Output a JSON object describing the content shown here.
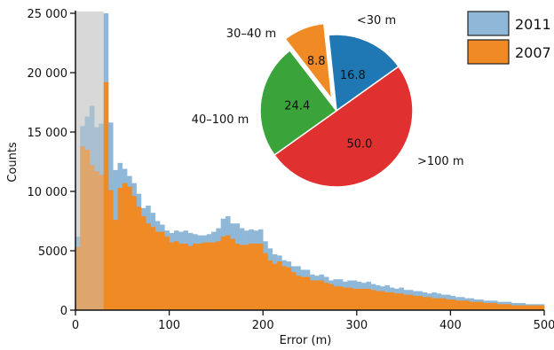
{
  "chart_data": [
    {
      "type": "bar",
      "subtype": "histogram",
      "xlabel": "Error (m)",
      "ylabel": "Counts",
      "xlim": [
        0,
        500
      ],
      "ylim": [
        0,
        25000
      ],
      "xticks": [
        "0",
        "100",
        "200",
        "300",
        "400",
        "500"
      ],
      "yticks": [
        "0",
        "5000",
        "10 000",
        "15 000",
        "20 000",
        "25 000"
      ],
      "bin_width": 5,
      "shaded_region": [
        0,
        30
      ],
      "legend_position": "top-right",
      "series": [
        {
          "name": "2011",
          "color": "#8fb8d8",
          "values": [
            6200,
            15500,
            16300,
            17200,
            15400,
            15700,
            25000,
            15800,
            11800,
            12400,
            11900,
            11300,
            10700,
            9800,
            8600,
            8800,
            8200,
            7500,
            7200,
            6700,
            6500,
            6700,
            6600,
            6700,
            6500,
            6400,
            6300,
            6300,
            6400,
            6600,
            6900,
            7700,
            7900,
            7300,
            7300,
            6900,
            6700,
            6800,
            6700,
            6800,
            5800,
            5200,
            4700,
            4600,
            4200,
            4100,
            3700,
            3700,
            3400,
            3400,
            3000,
            2900,
            3000,
            2800,
            2500,
            2600,
            2600,
            2400,
            2500,
            2500,
            2400,
            2300,
            2400,
            2200,
            2100,
            2000,
            2100,
            1900,
            1800,
            1900,
            1700,
            1700,
            1600,
            1600,
            1500,
            1400,
            1500,
            1400,
            1300,
            1300,
            1200,
            1100,
            1100,
            1000,
            1000,
            900,
            900,
            800,
            800,
            800,
            700,
            700,
            700,
            600,
            600,
            600,
            500,
            500,
            500,
            500
          ]
        },
        {
          "name": "2007",
          "color": "#f08a24",
          "values": [
            5300,
            13800,
            13500,
            12200,
            11700,
            11400,
            19200,
            10100,
            7600,
            10300,
            10700,
            10400,
            9600,
            8700,
            7900,
            7300,
            7000,
            6600,
            6600,
            6200,
            5700,
            5800,
            5600,
            5600,
            5400,
            5600,
            5600,
            5700,
            5700,
            5700,
            5800,
            6200,
            6300,
            6000,
            5600,
            5500,
            5500,
            5600,
            5600,
            5600,
            4800,
            4200,
            3900,
            4100,
            3700,
            3600,
            3200,
            2900,
            2800,
            2800,
            2500,
            2500,
            2500,
            2300,
            2200,
            2000,
            2000,
            1900,
            1900,
            1800,
            1800,
            1800,
            1800,
            1700,
            1600,
            1600,
            1500,
            1500,
            1400,
            1400,
            1300,
            1300,
            1200,
            1200,
            1100,
            1100,
            1000,
            1000,
            1000,
            900,
            900,
            800,
            800,
            800,
            700,
            700,
            700,
            600,
            600,
            600,
            500,
            500,
            500,
            400,
            400,
            400,
            400,
            400,
            400,
            400
          ]
        }
      ]
    },
    {
      "type": "pie",
      "slices": [
        {
          "label": "<30 m",
          "value": 16.8,
          "display": "16.8",
          "color": "#1f78b4",
          "exploded": false
        },
        {
          "label": ">100 m",
          "value": 50.0,
          "display": "50.0",
          "color": "#e03030",
          "exploded": false
        },
        {
          "label": "40–100 m",
          "value": 24.4,
          "display": "24.4",
          "color": "#3aa33a",
          "exploded": false
        },
        {
          "label": "30–40 m",
          "value": 8.8,
          "display": "8.8",
          "color": "#f08a24",
          "exploded": true
        }
      ]
    }
  ]
}
